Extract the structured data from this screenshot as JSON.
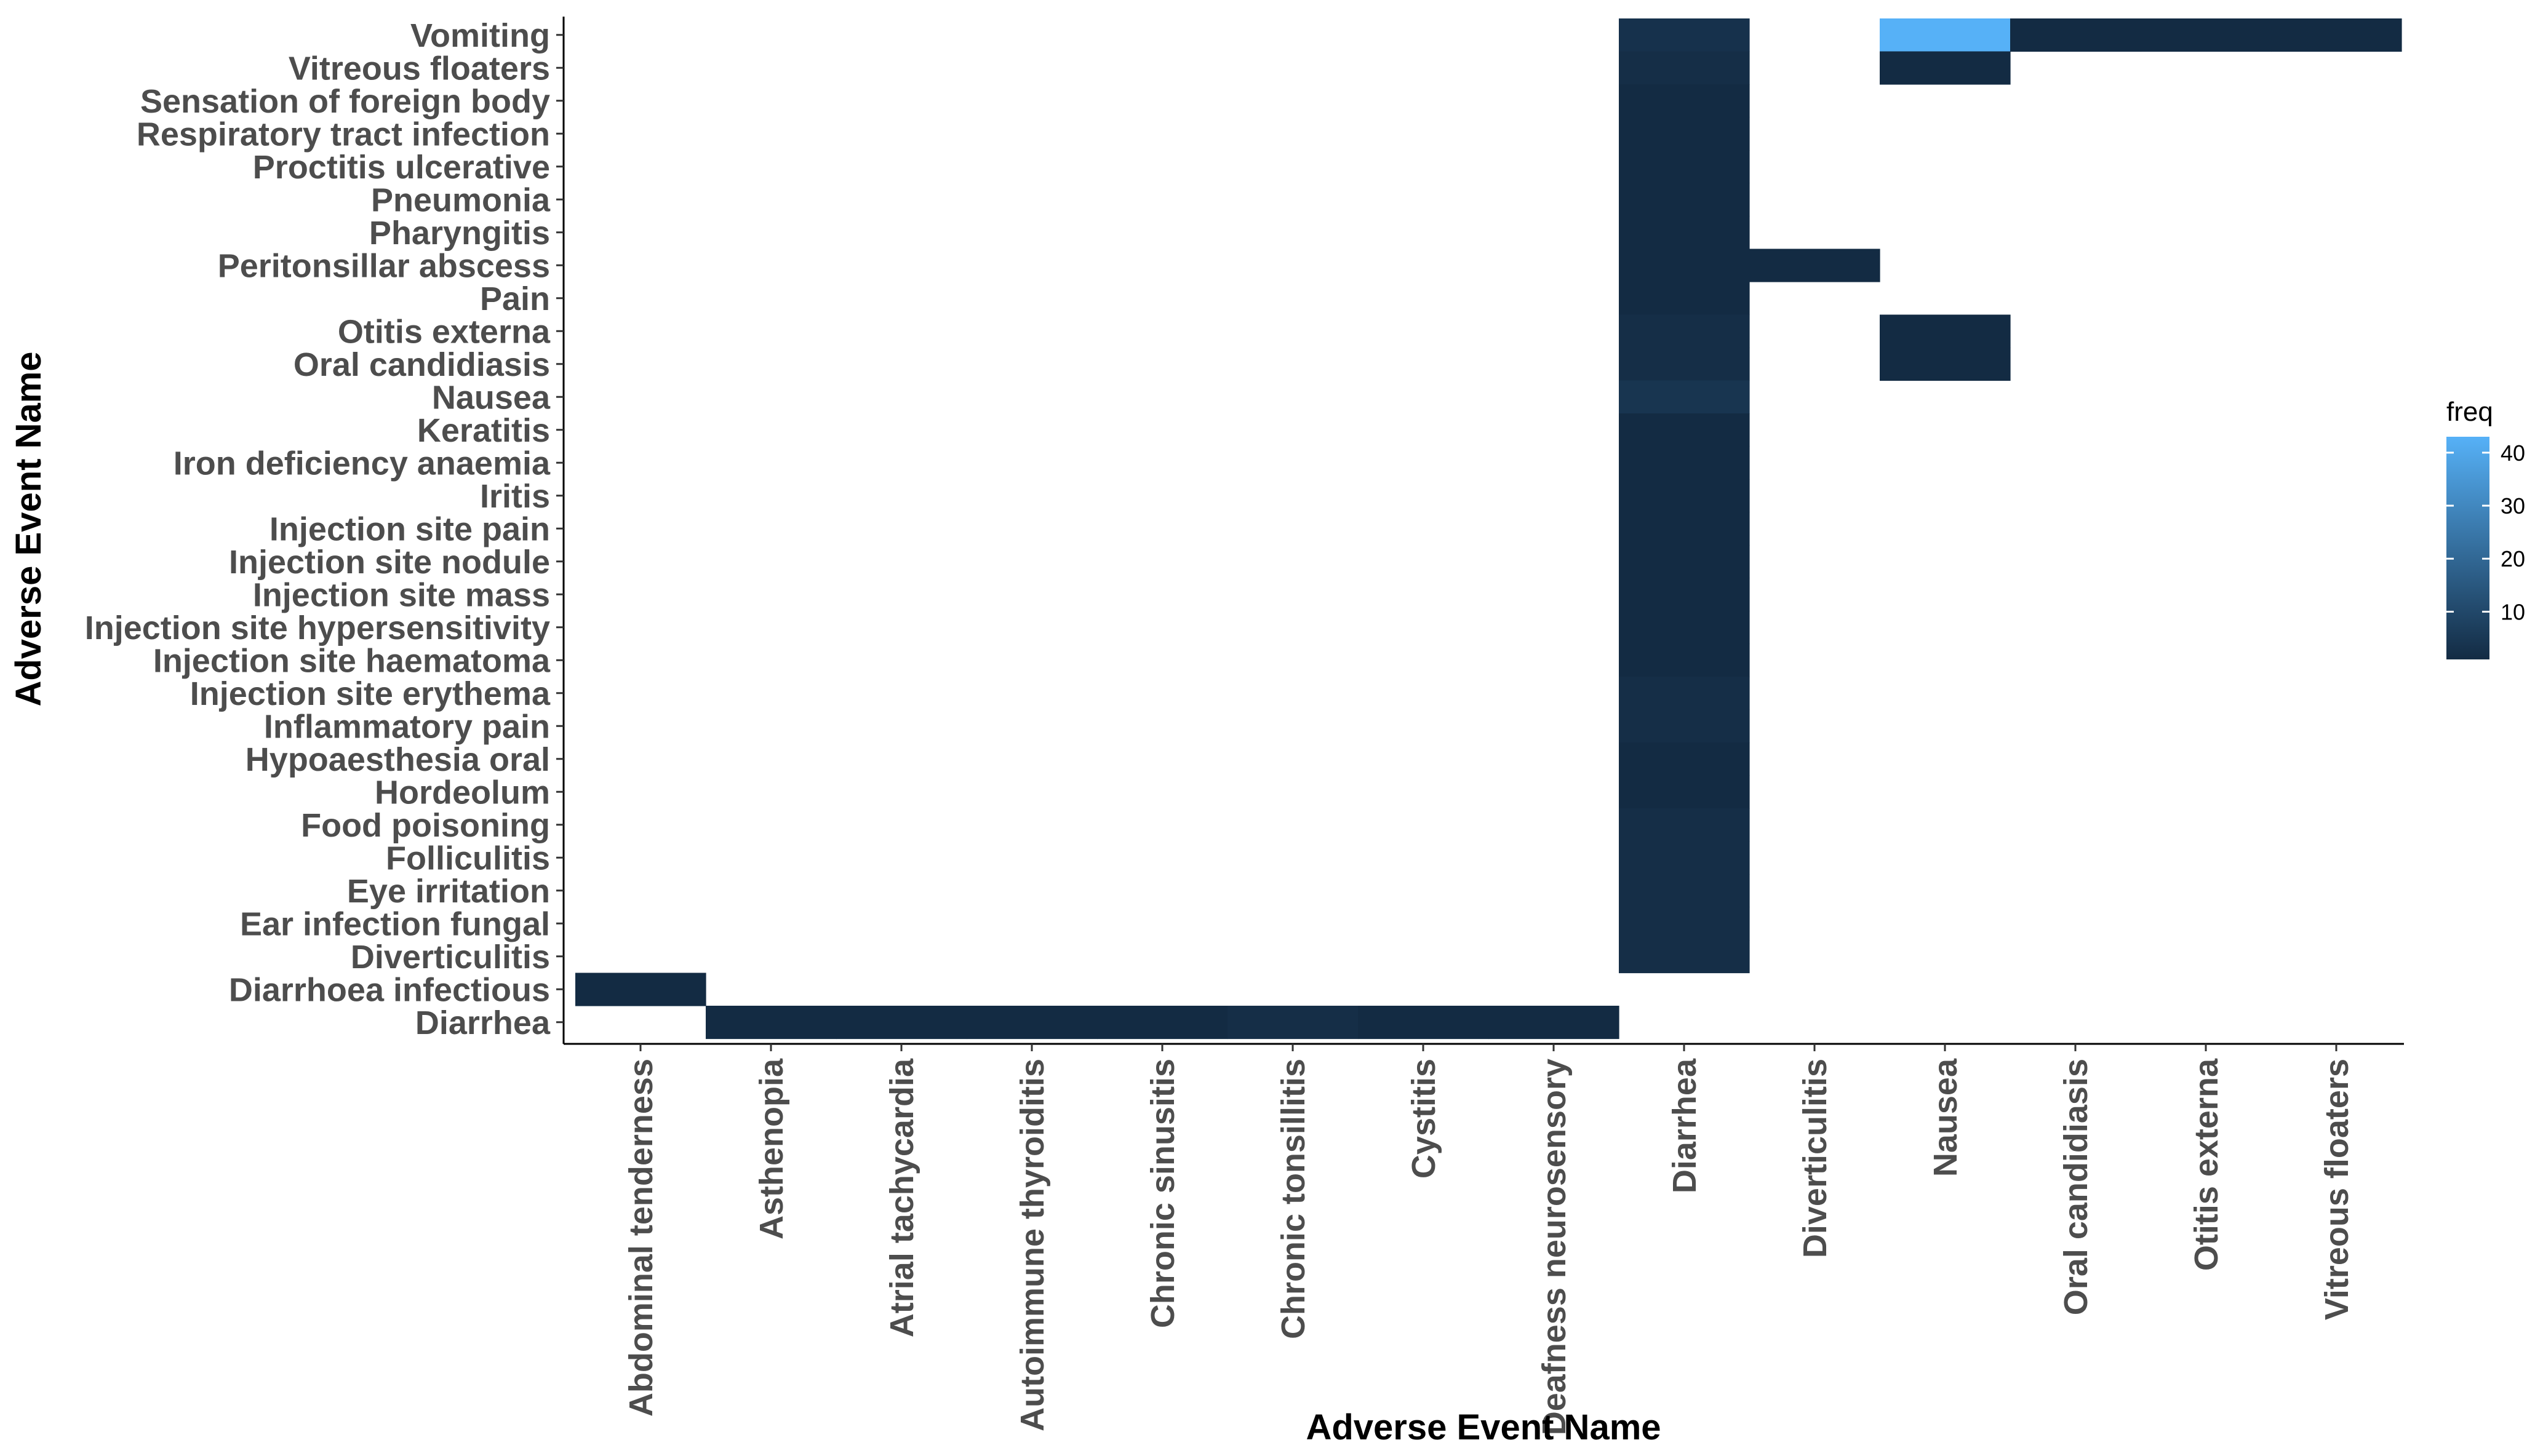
{
  "chart_data": {
    "type": "heatmap",
    "xlabel": "Adverse Event Name",
    "ylabel": "Adverse Event Name",
    "x_categories": [
      "Abdominal tenderness",
      "Asthenopia",
      "Atrial tachycardia",
      "Autoimmune thyroiditis",
      "Chronic sinusitis",
      "Chronic tonsillitis",
      "Cystitis",
      "Deafness neurosensory",
      "Diarrhea",
      "Diverticulitis",
      "Nausea",
      "Oral candidiasis",
      "Otitis externa",
      "Vitreous floaters"
    ],
    "y_categories": [
      "Vomiting",
      "Vitreous floaters",
      "Sensation of foreign body",
      "Respiratory tract infection",
      "Proctitis ulcerative",
      "Pneumonia",
      "Pharyngitis",
      "Peritonsillar abscess",
      "Pain",
      "Otitis externa",
      "Oral candidiasis",
      "Nausea",
      "Keratitis",
      "Iron deficiency anaemia",
      "Iritis",
      "Injection site pain",
      "Injection site nodule",
      "Injection site mass",
      "Injection site hypersensitivity",
      "Injection site haematoma",
      "Injection site erythema",
      "Inflammatory pain",
      "Hypoaesthesia oral",
      "Hordeolum",
      "Food poisoning",
      "Folliculitis",
      "Eye irritation",
      "Ear infection fungal",
      "Diverticulitis",
      "Diarrhoea infectious",
      "Diarrhea"
    ],
    "cells": [
      {
        "x": "Abdominal tenderness",
        "y": "Diarrhoea infectious",
        "value": 1
      },
      {
        "x": "Asthenopia",
        "y": "Diarrhea",
        "value": 1
      },
      {
        "x": "Atrial tachycardia",
        "y": "Diarrhea",
        "value": 1
      },
      {
        "x": "Autoimmune thyroiditis",
        "y": "Diarrhea",
        "value": 1
      },
      {
        "x": "Chronic sinusitis",
        "y": "Diarrhea",
        "value": 1
      },
      {
        "x": "Chronic tonsillitis",
        "y": "Diarrhea",
        "value": 2
      },
      {
        "x": "Cystitis",
        "y": "Diarrhea",
        "value": 1
      },
      {
        "x": "Deafness neurosensory",
        "y": "Diarrhea",
        "value": 1
      },
      {
        "x": "Diarrhea",
        "y": "Vomiting",
        "value": 3
      },
      {
        "x": "Diarrhea",
        "y": "Vitreous floaters",
        "value": 2
      },
      {
        "x": "Diarrhea",
        "y": "Sensation of foreign body",
        "value": 1
      },
      {
        "x": "Diarrhea",
        "y": "Respiratory tract infection",
        "value": 1
      },
      {
        "x": "Diarrhea",
        "y": "Proctitis ulcerative",
        "value": 1
      },
      {
        "x": "Diarrhea",
        "y": "Pneumonia",
        "value": 1
      },
      {
        "x": "Diarrhea",
        "y": "Pharyngitis",
        "value": 1
      },
      {
        "x": "Diarrhea",
        "y": "Peritonsillar abscess",
        "value": 1
      },
      {
        "x": "Diarrhea",
        "y": "Pain",
        "value": 1
      },
      {
        "x": "Diarrhea",
        "y": "Otitis externa",
        "value": 2
      },
      {
        "x": "Diarrhea",
        "y": "Oral candidiasis",
        "value": 2
      },
      {
        "x": "Diarrhea",
        "y": "Nausea",
        "value": 4
      },
      {
        "x": "Diarrhea",
        "y": "Keratitis",
        "value": 1
      },
      {
        "x": "Diarrhea",
        "y": "Iron deficiency anaemia",
        "value": 1
      },
      {
        "x": "Diarrhea",
        "y": "Iritis",
        "value": 1
      },
      {
        "x": "Diarrhea",
        "y": "Injection site pain",
        "value": 1
      },
      {
        "x": "Diarrhea",
        "y": "Injection site nodule",
        "value": 1
      },
      {
        "x": "Diarrhea",
        "y": "Injection site mass",
        "value": 1
      },
      {
        "x": "Diarrhea",
        "y": "Injection site hypersensitivity",
        "value": 1
      },
      {
        "x": "Diarrhea",
        "y": "Injection site haematoma",
        "value": 1
      },
      {
        "x": "Diarrhea",
        "y": "Injection site erythema",
        "value": 2
      },
      {
        "x": "Diarrhea",
        "y": "Inflammatory pain",
        "value": 2
      },
      {
        "x": "Diarrhea",
        "y": "Hypoaesthesia oral",
        "value": 1
      },
      {
        "x": "Diarrhea",
        "y": "Hordeolum",
        "value": 1
      },
      {
        "x": "Diarrhea",
        "y": "Food poisoning",
        "value": 2
      },
      {
        "x": "Diarrhea",
        "y": "Folliculitis",
        "value": 2
      },
      {
        "x": "Diarrhea",
        "y": "Eye irritation",
        "value": 2
      },
      {
        "x": "Diarrhea",
        "y": "Ear infection fungal",
        "value": 2
      },
      {
        "x": "Diarrhea",
        "y": "Diverticulitis",
        "value": 2
      },
      {
        "x": "Diverticulitis",
        "y": "Peritonsillar abscess",
        "value": 1
      },
      {
        "x": "Nausea",
        "y": "Vomiting",
        "value": 43
      },
      {
        "x": "Nausea",
        "y": "Vitreous floaters",
        "value": 1
      },
      {
        "x": "Nausea",
        "y": "Otitis externa",
        "value": 1
      },
      {
        "x": "Nausea",
        "y": "Oral candidiasis",
        "value": 1
      },
      {
        "x": "Oral candidiasis",
        "y": "Vomiting",
        "value": 1
      },
      {
        "x": "Otitis externa",
        "y": "Vomiting",
        "value": 1
      },
      {
        "x": "Vitreous floaters",
        "y": "Vomiting",
        "value": 1
      }
    ],
    "value_range": [
      1,
      43
    ],
    "color_scale": {
      "low": "#132B43",
      "high": "#56B1F7"
    },
    "legend": {
      "title": "freq",
      "ticks": [
        10,
        20,
        30,
        40
      ],
      "position": "right"
    },
    "grid": false
  }
}
